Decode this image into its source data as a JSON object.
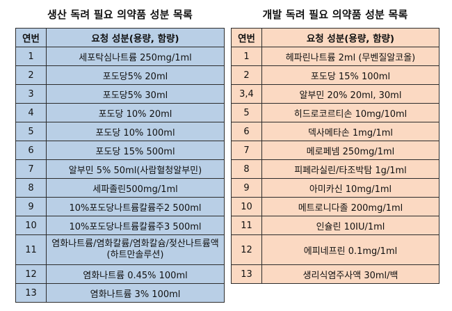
{
  "left": {
    "title": "생산 독려 필요 의약품 성분 목록",
    "headers": [
      "연번",
      "요청 성분(용량, 함량)"
    ],
    "rows": [
      [
        "1",
        "세포탁심나트륨 250mg/1ml"
      ],
      [
        "2",
        "포도당5% 20ml"
      ],
      [
        "3",
        "포도당5% 30ml"
      ],
      [
        "4",
        "포도당 10% 20ml"
      ],
      [
        "5",
        "포도당 10% 100ml"
      ],
      [
        "6",
        "포도당 15% 500ml"
      ],
      [
        "7",
        "알부민 5% 50ml(사람혈청알부민)"
      ],
      [
        "8",
        "세파졸린500mg/1ml"
      ],
      [
        "9",
        "10%포도당나트륨칼륨주2 500ml"
      ],
      [
        "10",
        "10%포도당나트륨칼륨주3 500ml"
      ],
      [
        "11",
        "염화나트륨/염화칼륨/염화칼슘/젖산나트륨액(하트만솔루션)"
      ],
      [
        "12",
        "염화나트륨 0.45% 100ml"
      ],
      [
        "13",
        "염화나트륨 3% 100ml"
      ]
    ]
  },
  "right": {
    "title": "개발 독려 필요 의약품 성분 목록",
    "headers": [
      "연번",
      "요청 성분(용량, 함량)"
    ],
    "rows": [
      [
        "1",
        "헤파린나트륨 2ml (무벤질알코올)"
      ],
      [
        "2",
        "포도당 15% 100ml"
      ],
      [
        "3,4",
        "알부민 20% 20ml, 30ml"
      ],
      [
        "5",
        "히드로코르티손 10mg/10ml"
      ],
      [
        "6",
        "덱사메타손 1mg/1ml"
      ],
      [
        "7",
        "메로페넴 250mg/1ml"
      ],
      [
        "8",
        "피페라실린/타조박탐 1g/1ml"
      ],
      [
        "9",
        "아미카신 10mg/1ml"
      ],
      [
        "10",
        "메트로니다졸 200mg/1ml"
      ],
      [
        "11",
        "인슐린 10IU/1ml"
      ],
      [
        "12",
        "에피네프린 0.1mg/1ml"
      ],
      [
        "13",
        "생리식염주사액 30ml/백"
      ]
    ]
  }
}
